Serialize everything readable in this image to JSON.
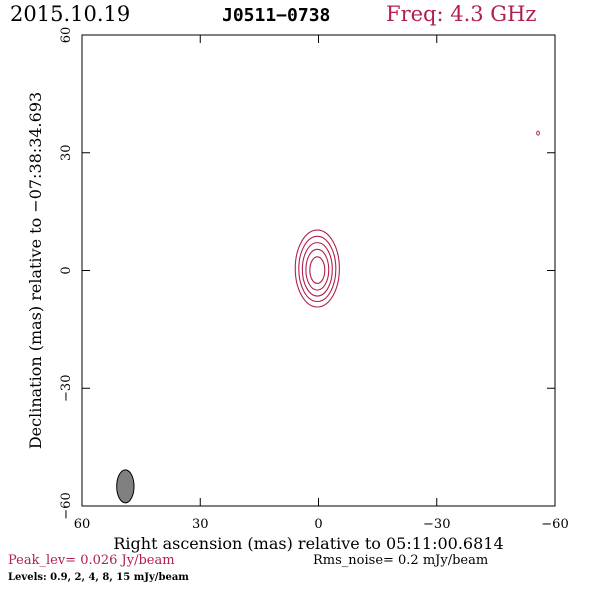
{
  "header": {
    "date": "2015.10.19",
    "source": "J0511−0738",
    "frequency": "Freq: 4.3 GHz"
  },
  "footer": {
    "peak": "Peak_lev=  0.026 Jy/beam",
    "rms": "Rms_noise=  0.2 mJy/beam",
    "levels": "Levels: 0.9,   2,   4,   8,   15 mJy/beam"
  },
  "colors": {
    "contour": "#b0204a",
    "axes": "#000000",
    "beam_fill": "#808080"
  },
  "chart_data": {
    "type": "contour",
    "title": "J0511−0738",
    "xlabel": "Right ascension (mas) relative to 05:11:00.6814",
    "ylabel": "Declination (mas) relative to −07:38:34.693",
    "xlim": [
      60,
      -60
    ],
    "ylim": [
      -60,
      60
    ],
    "x_ticks": [
      60,
      30,
      0,
      -30,
      -60
    ],
    "y_ticks": [
      -60,
      -30,
      0,
      30,
      60
    ],
    "x_tick_labels": [
      "60",
      "30",
      "0",
      "−30",
      "−60"
    ],
    "y_tick_labels": [
      "−60",
      "−30",
      "0",
      "30",
      "60"
    ],
    "contour_levels_mJy": [
      0.9,
      2,
      4,
      8,
      15
    ],
    "contours": [
      {
        "level": 0.9,
        "center": [
          0.3,
          0.5
        ],
        "semi_x": 5.6,
        "semi_y": 9.8
      },
      {
        "level": 2,
        "center": [
          0.3,
          0.4
        ],
        "semi_x": 4.7,
        "semi_y": 8.3
      },
      {
        "level": 4,
        "center": [
          0.3,
          0.3
        ],
        "semi_x": 3.8,
        "semi_y": 6.8
      },
      {
        "level": 8,
        "center": [
          0.3,
          0.2
        ],
        "semi_x": 2.9,
        "semi_y": 5.2
      },
      {
        "level": 15,
        "center": [
          0.3,
          0.1
        ],
        "semi_x": 1.9,
        "semi_y": 3.4
      }
    ],
    "spurious_contour": {
      "center": [
        -55.7,
        35
      ],
      "semi_x": 0.35,
      "semi_y": 0.5
    },
    "beam": {
      "center": [
        49,
        -55
      ],
      "semi_x": 2.2,
      "semi_y": 4.2
    }
  }
}
